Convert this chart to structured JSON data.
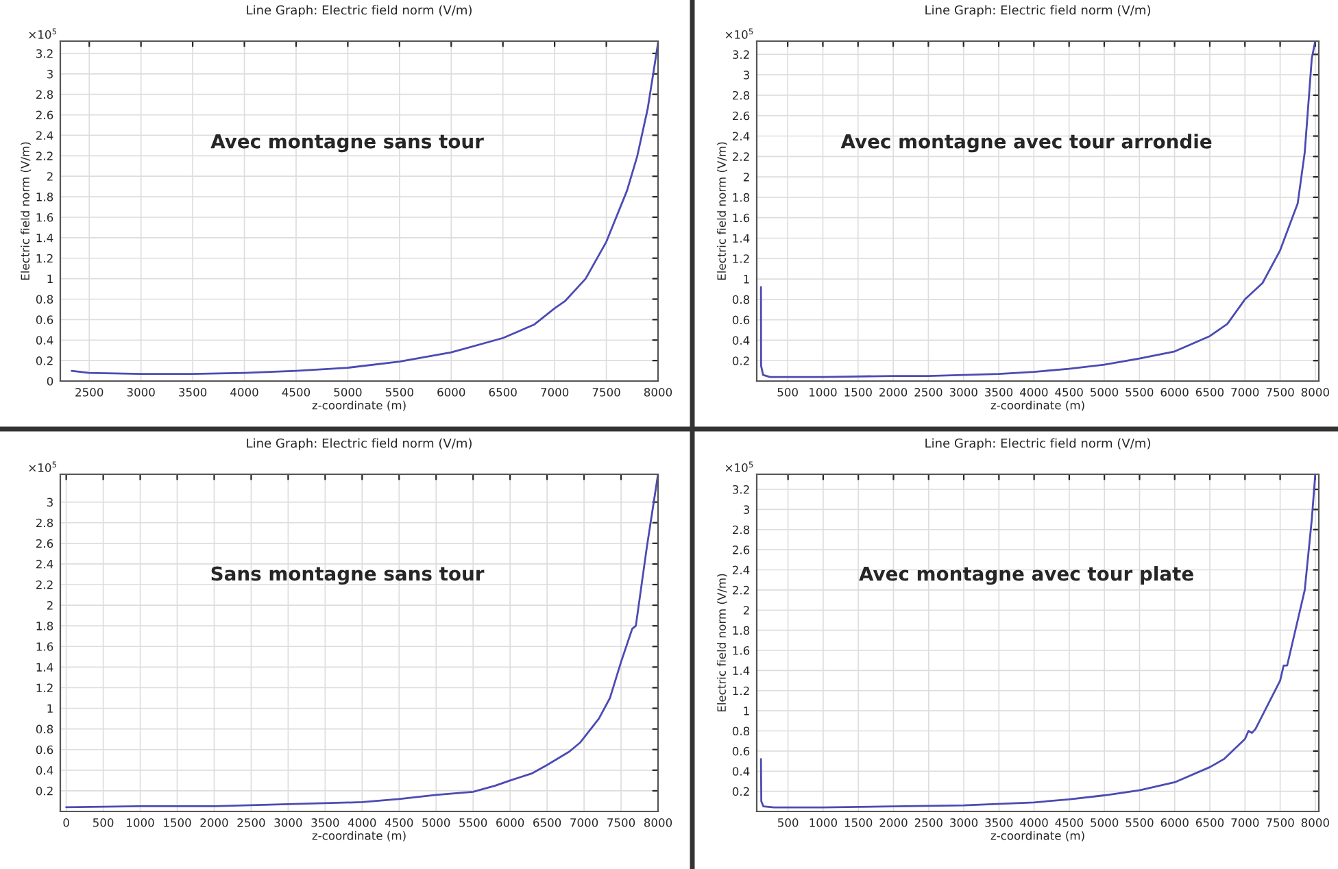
{
  "chart_data": [
    {
      "type": "line",
      "title": "Line Graph: Electric field norm (V/m)",
      "xlabel": "z-coordinate (m)",
      "ylabel": "Electric field norm (V/m)",
      "annotations": [
        "×10$^{5}$",
        "Avec montagne sans tour"
      ],
      "grid": true,
      "marker": "none",
      "line_style": "solid",
      "xlim": [
        2220,
        8000
      ],
      "xticks": [
        2500,
        3000,
        3500,
        4000,
        4500,
        5000,
        5500,
        6000,
        6500,
        7000,
        7500,
        8000
      ],
      "ylim": [
        0,
        3.32
      ],
      "yticks": [
        0,
        0.2,
        0.4,
        0.6,
        0.8,
        1,
        1.2,
        1.4,
        1.6,
        1.8,
        2,
        2.2,
        2.4,
        2.6,
        2.8,
        3,
        3.2
      ],
      "series": [
        {
          "color": "#4b4bb4",
          "x": [
            2330,
            2500,
            3000,
            3500,
            4000,
            4500,
            5000,
            5500,
            6000,
            6500,
            6800,
            7000,
            7100,
            7300,
            7500,
            7700,
            7800,
            7900,
            8000
          ],
          "values": [
            0.1,
            0.08,
            0.07,
            0.07,
            0.08,
            0.1,
            0.13,
            0.19,
            0.28,
            0.42,
            0.55,
            0.71,
            0.78,
            1.0,
            1.36,
            1.86,
            2.2,
            2.66,
            3.3
          ]
        }
      ]
    },
    {
      "type": "line",
      "title": "Line Graph: Electric field norm (V/m)",
      "xlabel": "z-coordinate (m)",
      "ylabel": "Electric field norm (V/m)",
      "annotations": [
        "×10$^{5}$",
        "Avec montagne avec tour arrondie"
      ],
      "grid": true,
      "marker": "none",
      "line_style": "solid",
      "xlim": [
        60,
        8050
      ],
      "xticks": [
        500,
        1000,
        1500,
        2000,
        2500,
        3000,
        3500,
        4000,
        4500,
        5000,
        5500,
        6000,
        6500,
        7000,
        7500,
        8000
      ],
      "ylim": [
        0,
        3.33
      ],
      "yticks": [
        0.2,
        0.4,
        0.6,
        0.8,
        1,
        1.2,
        1.4,
        1.6,
        1.8,
        2,
        2.2,
        2.4,
        2.6,
        2.8,
        3,
        3.2
      ],
      "series": [
        {
          "color": "#4b4bb4",
          "x": [
            120,
            122,
            150,
            250,
            500,
            1000,
            2000,
            2500,
            3000,
            3500,
            4000,
            4500,
            5000,
            5500,
            6000,
            6500,
            6750,
            7000,
            7250,
            7500,
            7750,
            7850,
            7950,
            8000
          ],
          "values": [
            0.92,
            0.15,
            0.06,
            0.04,
            0.04,
            0.04,
            0.05,
            0.05,
            0.06,
            0.07,
            0.09,
            0.12,
            0.16,
            0.22,
            0.29,
            0.44,
            0.56,
            0.8,
            0.96,
            1.28,
            1.74,
            2.24,
            3.16,
            3.33
          ]
        }
      ]
    },
    {
      "type": "line",
      "title": "Line Graph: Electric field norm (V/m)",
      "xlabel": "z-coordinate (m)",
      "annotations": [
        "×10$^{5}$",
        "Sans montagne sans tour"
      ],
      "grid": true,
      "marker": "none",
      "line_style": "solid",
      "xlim": [
        -80,
        8000
      ],
      "xticks": [
        0,
        500,
        1000,
        1500,
        2000,
        2500,
        3000,
        3500,
        4000,
        4500,
        5000,
        5500,
        6000,
        6500,
        7000,
        7500,
        8000
      ],
      "ylim": [
        0,
        3.27
      ],
      "yticks": [
        0.2,
        0.4,
        0.6,
        0.8,
        1,
        1.2,
        1.4,
        1.6,
        1.8,
        2,
        2.2,
        2.4,
        2.6,
        2.8,
        3
      ],
      "series": [
        {
          "color": "#4b4bb4",
          "x": [
            0,
            1000,
            2000,
            3000,
            4000,
            4500,
            5000,
            5500,
            5800,
            6000,
            6300,
            6500,
            6800,
            6950,
            7200,
            7350,
            7500,
            7650,
            7700,
            7850,
            8000
          ],
          "values": [
            0.04,
            0.05,
            0.05,
            0.07,
            0.09,
            0.12,
            0.16,
            0.19,
            0.25,
            0.3,
            0.37,
            0.45,
            0.58,
            0.67,
            0.9,
            1.1,
            1.45,
            1.77,
            1.8,
            2.57,
            3.27
          ]
        }
      ]
    },
    {
      "type": "line",
      "title": "Line Graph: Electric field norm (V/m)",
      "xlabel": "z-coordinate (m)",
      "ylabel": "Electric field norm (V/m)",
      "annotations": [
        "×10$^{5}$",
        "Avec montagne avec tour plate"
      ],
      "grid": true,
      "marker": "none",
      "line_style": "solid",
      "xlim": [
        55,
        8050
      ],
      "xticks": [
        500,
        1000,
        1500,
        2000,
        2500,
        3000,
        3500,
        4000,
        4500,
        5000,
        5500,
        6000,
        6500,
        7000,
        7500,
        8000
      ],
      "ylim": [
        0,
        3.35
      ],
      "yticks": [
        0.2,
        0.4,
        0.6,
        0.8,
        1,
        1.2,
        1.4,
        1.6,
        1.8,
        2,
        2.2,
        2.4,
        2.6,
        2.8,
        3,
        3.2
      ],
      "series": [
        {
          "color": "#4b4bb4",
          "x": [
            115,
            120,
            150,
            300,
            1000,
            2000,
            3000,
            4000,
            4500,
            5000,
            5500,
            6000,
            6500,
            6700,
            7000,
            7050,
            7100,
            7150,
            7500,
            7550,
            7600,
            7750,
            7850,
            7950,
            8000
          ],
          "values": [
            0.52,
            0.1,
            0.05,
            0.04,
            0.04,
            0.05,
            0.06,
            0.09,
            0.12,
            0.16,
            0.21,
            0.29,
            0.44,
            0.52,
            0.72,
            0.8,
            0.78,
            0.82,
            1.3,
            1.45,
            1.45,
            1.9,
            2.2,
            2.9,
            3.35
          ]
        }
      ]
    }
  ]
}
